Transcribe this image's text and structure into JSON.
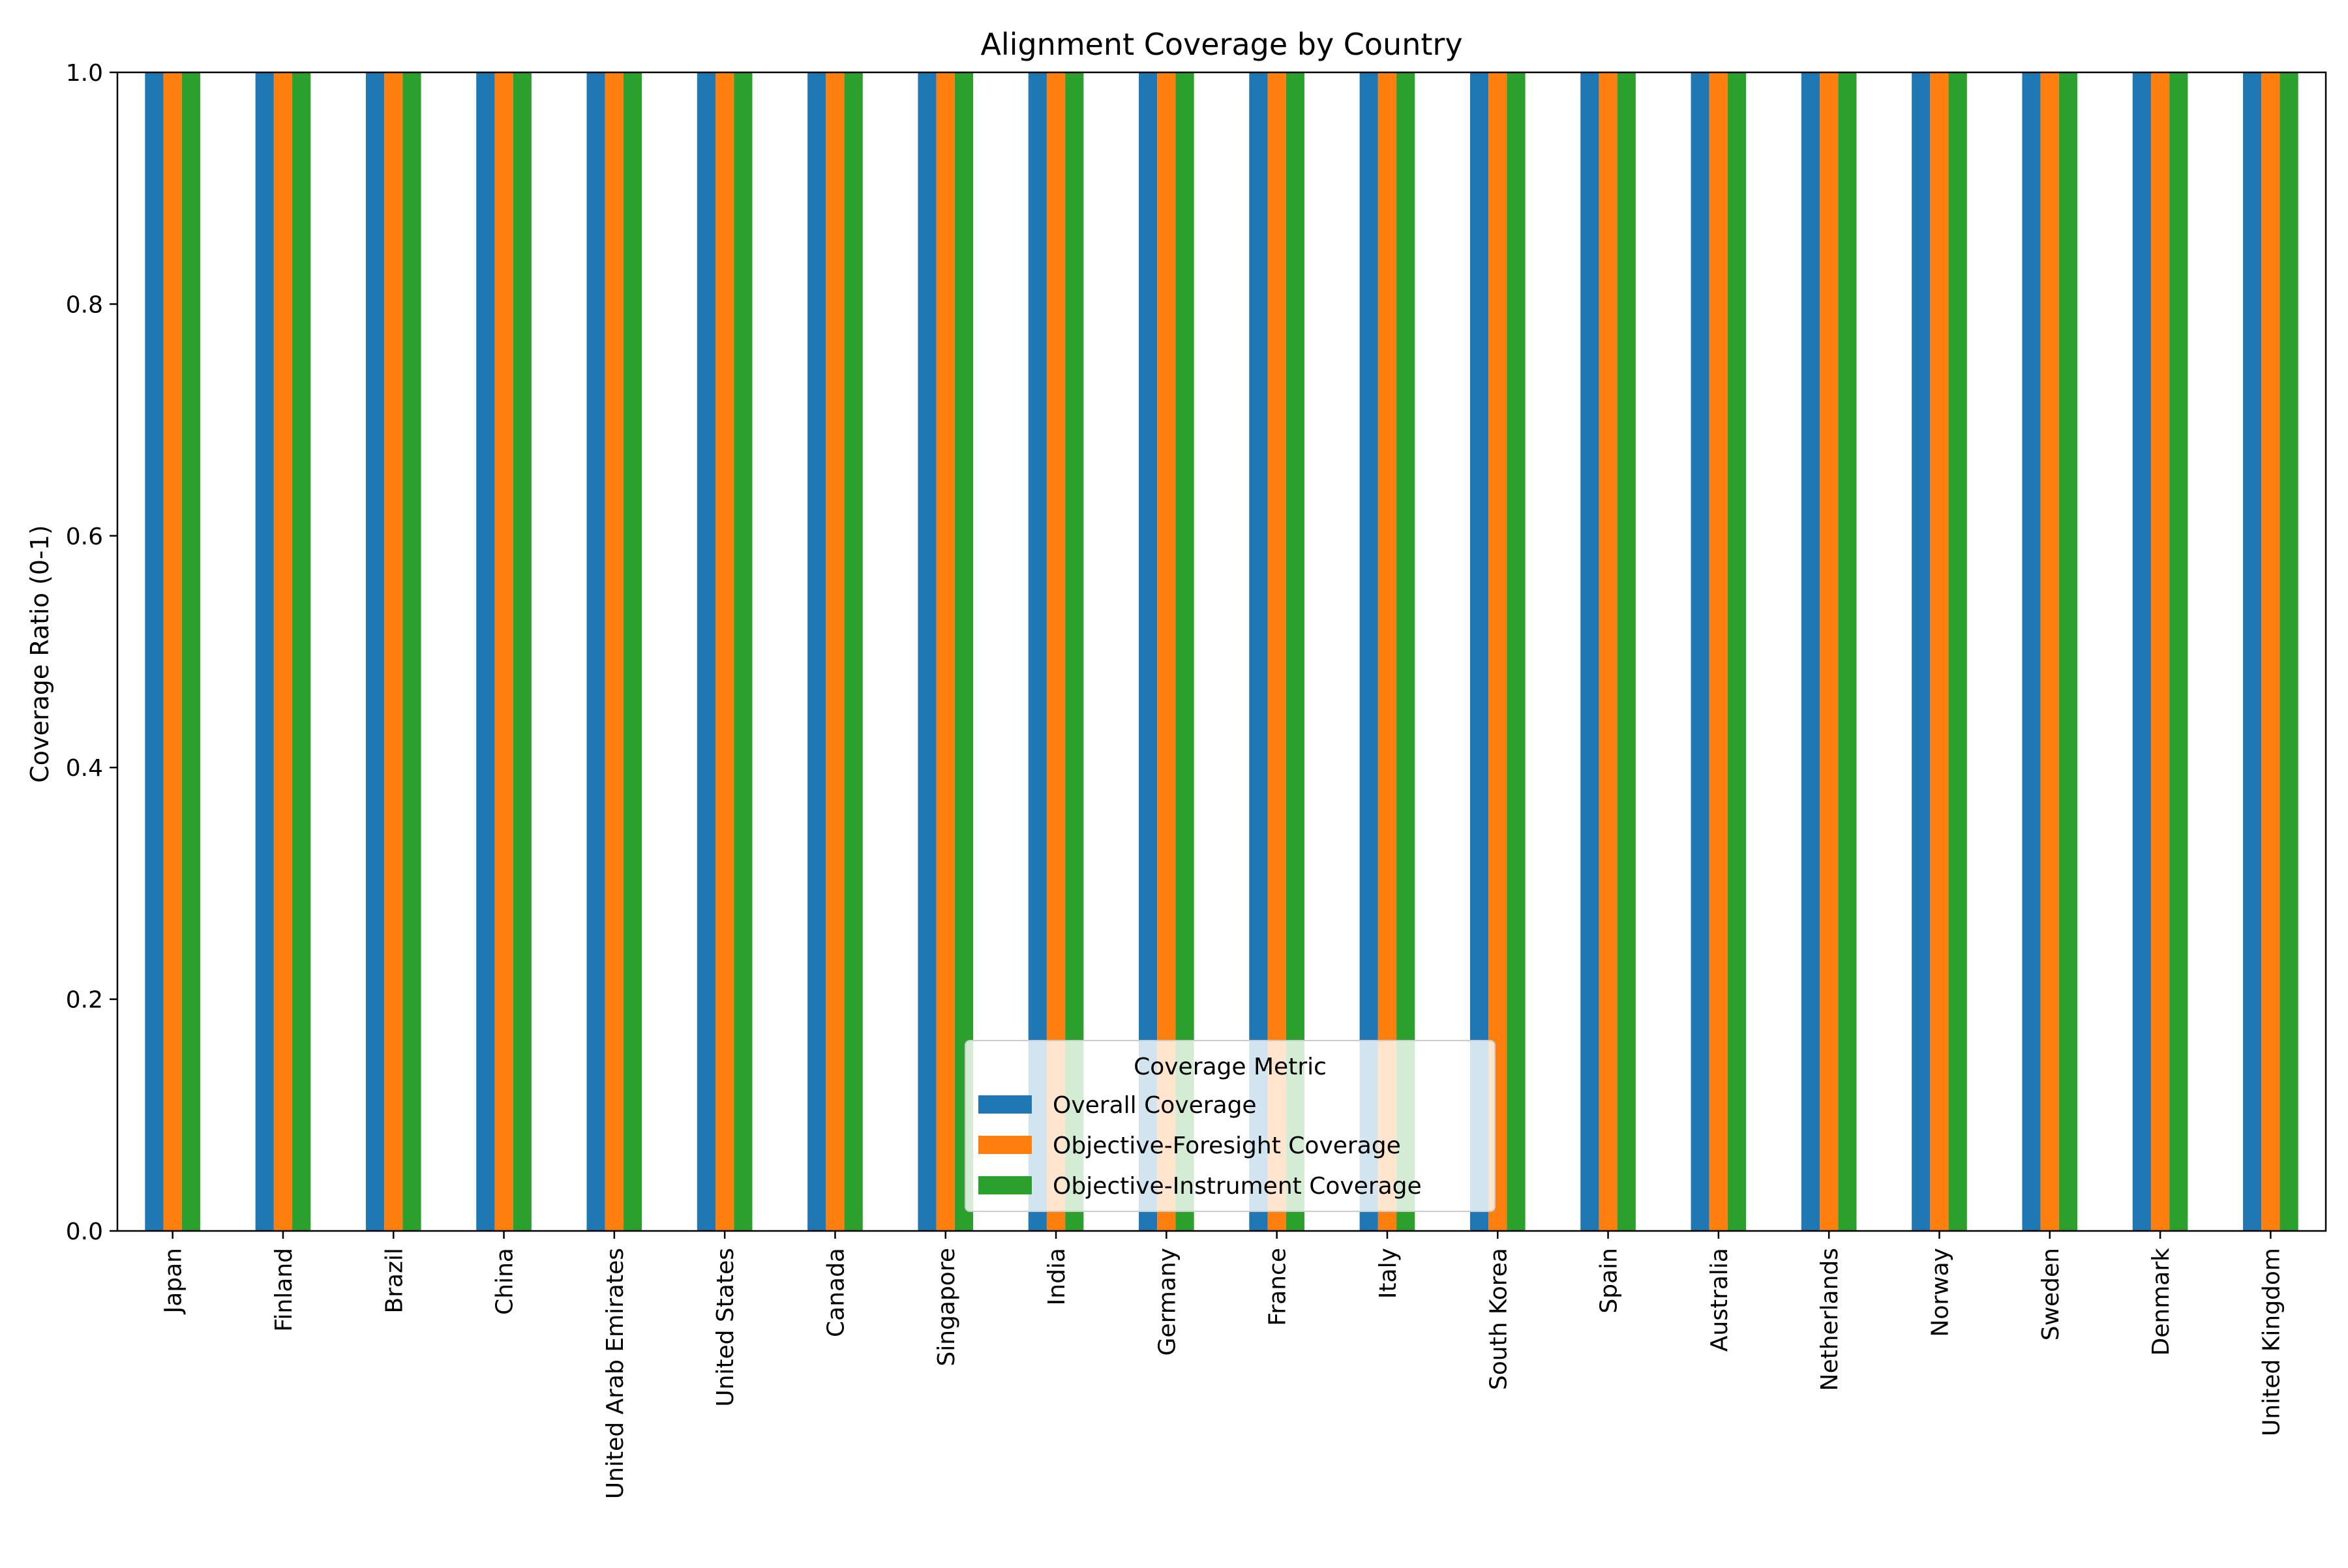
{
  "chart_data": {
    "type": "bar",
    "title": "Alignment Coverage by Country",
    "xlabel": "",
    "ylabel": "Coverage Ratio (0-1)",
    "ylim": [
      0,
      1.0
    ],
    "yticks": [
      "0.0",
      "0.2",
      "0.4",
      "0.6",
      "0.8",
      "1.0"
    ],
    "grid": false,
    "legend": {
      "title": "Coverage Metric",
      "placement": "lower-center"
    },
    "categories": [
      "Japan",
      "Finland",
      "Brazil",
      "China",
      "United Arab Emirates",
      "United States",
      "Canada",
      "Singapore",
      "India",
      "Germany",
      "France",
      "Italy",
      "South Korea",
      "Spain",
      "Australia",
      "Netherlands",
      "Norway",
      "Sweden",
      "Denmark",
      "United Kingdom"
    ],
    "series": [
      {
        "name": "Overall Coverage",
        "color": "#1f77b4",
        "values": [
          1,
          1,
          1,
          1,
          1,
          1,
          1,
          1,
          1,
          1,
          1,
          1,
          1,
          1,
          1,
          1,
          1,
          1,
          1,
          1
        ]
      },
      {
        "name": "Objective-Foresight Coverage",
        "color": "#ff7f0e",
        "values": [
          1,
          1,
          1,
          1,
          1,
          1,
          1,
          1,
          1,
          1,
          1,
          1,
          1,
          1,
          1,
          1,
          1,
          1,
          1,
          1
        ]
      },
      {
        "name": "Objective-Instrument Coverage",
        "color": "#2ca02c",
        "values": [
          1,
          1,
          1,
          1,
          1,
          1,
          1,
          1,
          1,
          1,
          1,
          1,
          1,
          1,
          1,
          1,
          1,
          1,
          1,
          1
        ]
      }
    ]
  }
}
